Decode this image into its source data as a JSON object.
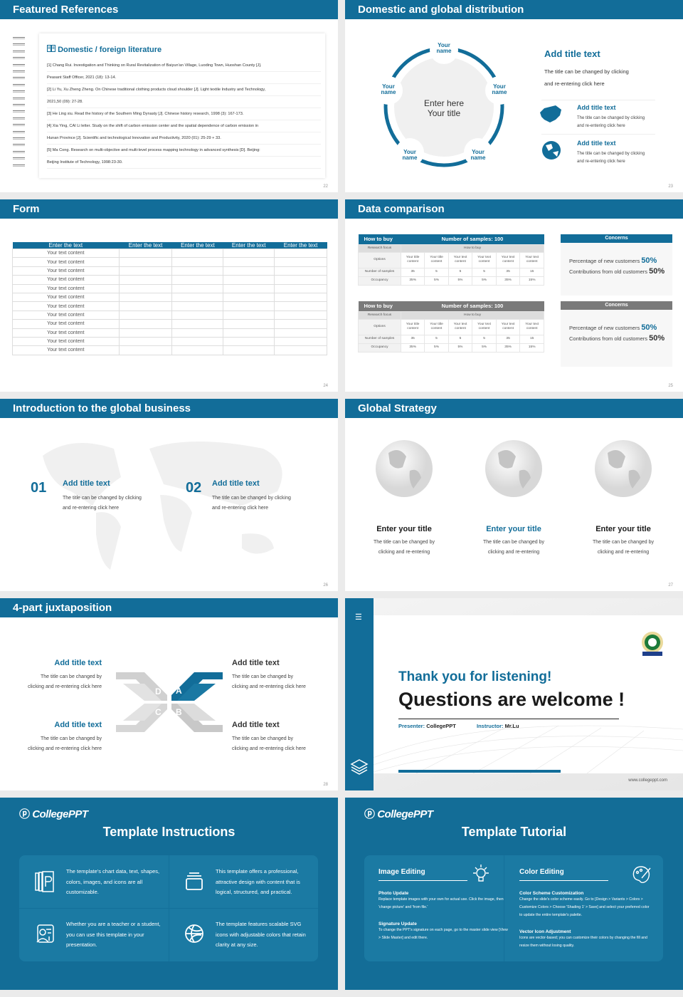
{
  "colors": {
    "primary": "#126d99",
    "gray": "#888888",
    "background": "#ebebeb"
  },
  "references": {
    "title": "Featured References",
    "page": "22",
    "heading": "Domestic / foreign literature",
    "icon": "book-icon",
    "lines": [
      "[1] Chang Rui. Investigation and Thinking on Rural Revitalization of Baiyun'an Village, Luoding Town, Huoshan County [J].",
      "Peasant Staff Officer, 2021 (18): 13-14.",
      "[2] Li Yu, Xu Zheng Zheng. On Chinese traditional clothing products cloud shoulder [J]. Light textile Industry and Technology,",
      "2021,50 (09): 27-28.",
      "[3] He Ling xiu. Read the history of the Southern Ming Dynasty [J]. Chinese history research, 1998 (3): 167-173.",
      "[4] Xia Ying, CAI Li letter. Study on the shift of carbon emission center and the spatial dependence of carbon emission in",
      "Hunan Province [J]. Scientific and technological Innovation and Productivity, 2020 (01): 25-29 + 33.",
      "[5] Ma Cong. Research on multi-objective and multi-level process mapping technology in advanced synthesis [D]. Beijing:",
      "Beijing Institute of Technology, 1998:23-30."
    ]
  },
  "distribution": {
    "title": "Domestic and global distribution",
    "page": "23",
    "center1": "Enter here",
    "center2": "Your title",
    "nodes": [
      {
        "a": "Your",
        "b": "name"
      },
      {
        "a": "Your",
        "b": "name"
      },
      {
        "a": "Your",
        "b": "name"
      },
      {
        "a": "Your",
        "b": "name"
      },
      {
        "a": "Your",
        "b": "name"
      }
    ],
    "main_title": "Add title text",
    "main_desc1": "The title can be changed by clicking",
    "main_desc2": "and re-entering click here",
    "items": [
      {
        "title": "Add title text",
        "d1": "The title can be changed by clicking",
        "d2": "and re-entering click here",
        "icon": "china-map-icon"
      },
      {
        "title": "Add title text",
        "d1": "The title can be changed by clicking",
        "d2": "and re-entering click here",
        "icon": "globe-icon"
      }
    ]
  },
  "form": {
    "title": "Form",
    "page": "24",
    "headers": [
      "Enter the text",
      "Enter the text",
      "Enter the text",
      "Enter the text",
      "Enter the text"
    ],
    "rows": [
      "Your text content",
      "Your text content",
      "Your text content",
      "Your text content",
      "Your text content",
      "Your text content",
      "Your text content",
      "Your text content",
      "Your text content",
      "Your text content",
      "Your text content",
      "Your text content"
    ]
  },
  "data": {
    "title": "Data comparison",
    "page": "25",
    "tables": [
      {
        "head_left": "How to buy",
        "head_right": "Number of samples: 100",
        "focus_label": "Research focus",
        "focus_value": "How to buy",
        "options_label": "Options",
        "options": [
          "Your title content",
          "Your title content",
          "Your text content",
          "Your text content",
          "Your text content",
          "Your text content"
        ],
        "samples_label": "Number of samples",
        "samples": [
          "35",
          "5",
          "5",
          "5",
          "35",
          "15"
        ],
        "occupancy_label": "Occupancy",
        "occupancy": [
          "35%",
          "5%",
          "5%",
          "5%",
          "35%",
          "15%"
        ],
        "color": "#126d99"
      },
      {
        "head_left": "How to buy",
        "head_right": "Number of samples: 100",
        "focus_label": "Research focus",
        "focus_value": "How to buy",
        "options_label": "Options",
        "options": [
          "Your title content",
          "Your title content",
          "Your text content",
          "Your text content",
          "Your text content",
          "Your text content"
        ],
        "samples_label": "Number of samples",
        "samples": [
          "35",
          "5",
          "5",
          "5",
          "35",
          "15"
        ],
        "occupancy_label": "Occupancy",
        "occupancy": [
          "35%",
          "5%",
          "5%",
          "5%",
          "35%",
          "15%"
        ],
        "color": "#7a7a7a"
      }
    ],
    "concerns": [
      {
        "title": "Concerns",
        "l1": "Percentage of new customers",
        "v1": "50%",
        "l2": "Contributions from old customers",
        "v2": "50%"
      },
      {
        "title": "Concerns",
        "l1": "Percentage of new customers",
        "v1": "50%",
        "l2": "Contributions from old customers",
        "v2": "50%"
      }
    ]
  },
  "intro": {
    "title": "Introduction to the global business",
    "page": "26",
    "items": [
      {
        "num": "01",
        "title": "Add title text",
        "d1": "The title can be changed by clicking",
        "d2": "and re-entering click here"
      },
      {
        "num": "02",
        "title": "Add title text",
        "d1": "The title can be changed by clicking",
        "d2": "and re-entering click here"
      }
    ]
  },
  "strategy": {
    "title": "Global Strategy",
    "page": "27",
    "items": [
      {
        "title": "Enter your title",
        "d1": "The title can be changed by",
        "d2": "clicking and re-entering"
      },
      {
        "title": "Enter your title",
        "d1": "The title can be changed by",
        "d2": "clicking and re-entering"
      },
      {
        "title": "Enter your title",
        "d1": "The title can be changed by",
        "d2": "clicking and re-entering"
      }
    ]
  },
  "juxta": {
    "title": "4-part juxtaposition",
    "page": "28",
    "letters": [
      "D",
      "A",
      "C",
      "B"
    ],
    "items": [
      {
        "title": "Add title text",
        "d1": "The title can be changed by",
        "d2": "clicking and re-entering click here"
      },
      {
        "title": "Add title text",
        "d1": "The title can be changed by",
        "d2": "clicking and re-entering click here"
      },
      {
        "title": "Add title text",
        "d1": "The title can be changed by",
        "d2": "clicking and re-entering click here"
      },
      {
        "title": "Add title text",
        "d1": "The title can be changed by",
        "d2": "clicking and re-entering click here"
      }
    ]
  },
  "thanks": {
    "line1": "Thank you for listening!",
    "line2": "Questions are welcome !",
    "presenter_label": "Presenter:",
    "presenter": "CollegePPT",
    "instructor_label": "Instructor:",
    "instructor": "Mr.Lu",
    "website": "www.collegeppt.com"
  },
  "instructions": {
    "logo": "CollegePPT",
    "title": "Template Instructions",
    "cells": [
      {
        "text": "The template's chart data, text, shapes, colors, images, and icons are all customizable.",
        "icon": "ppt-file-icon"
      },
      {
        "text": "This template offers a professional, attractive design with content that is logical, structured, and practical.",
        "icon": "stack-icon"
      },
      {
        "text": "Whether you are a teacher or a student, you can use this template in your presentation.",
        "icon": "teacher-icon"
      },
      {
        "text": "The template features scalable SVG icons with adjustable colors that retain clarity at any size.",
        "icon": "basketball-icon"
      }
    ]
  },
  "tutorial": {
    "logo": "CollegePPT",
    "title": "Template Tutorial",
    "cols": [
      {
        "heading": "Image Editing",
        "icon": "lightbulb-icon",
        "s1": "Photo Update",
        "p1": "Replace template images with your own for actual use. Click the image, then 'change picture' and 'from file.'",
        "s2": "Signature Update",
        "p2": "To change the PPT's signature on each page, go to the master slide view [View > Slide Master] and edit there."
      },
      {
        "heading": "Color Editing",
        "icon": "palette-icon",
        "s1": "Color Scheme Customization",
        "p1": "Change the slide's color scheme easily. Go to [Design > Variants > Colors > Customize Colors > Choose 'Shading 1' > Save] and select your preferred color to update the entire template's palette.",
        "s2": "Vector Icon Adjustment",
        "p2": "Icons are vector-based; you can customize their colors by changing the fill and resize them without losing quality."
      }
    ]
  }
}
